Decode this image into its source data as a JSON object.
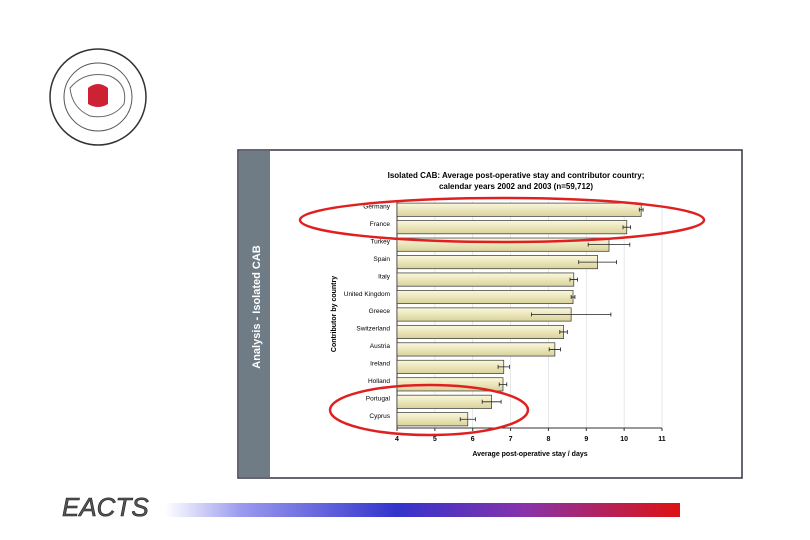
{
  "slide": {
    "sidebar_label": "Analysis - Isolated CAB",
    "footer": "EACTS"
  },
  "chart_data": {
    "type": "hbar",
    "title": "Isolated CAB: Average post-operative stay and contributor country;",
    "subtitle": "calendar years 2002 and 2003 (n=59,712)",
    "x_label": "Average post-operative stay / days",
    "y_label": "Contributor by country",
    "categories": [
      "Germany",
      "France",
      "Turkey",
      "Spain",
      "Italy",
      "United Kingdom",
      "Greece",
      "Switzerland",
      "Austria",
      "Ireland",
      "Holland",
      "Portugal",
      "Cyprus"
    ],
    "values": [
      10.45,
      10.07,
      9.6,
      9.3,
      8.67,
      8.65,
      8.6,
      8.4,
      8.17,
      6.82,
      6.8,
      6.5,
      5.87
    ],
    "errors": [
      0.05,
      0.1,
      0.55,
      0.5,
      0.1,
      0.05,
      1.05,
      0.1,
      0.15,
      0.15,
      0.1,
      0.25,
      0.2
    ],
    "color": "#f2edbd",
    "xlim": [
      4,
      11
    ],
    "xticks": [
      4,
      5,
      6,
      7,
      8,
      9,
      10,
      11
    ],
    "grid": true
  }
}
